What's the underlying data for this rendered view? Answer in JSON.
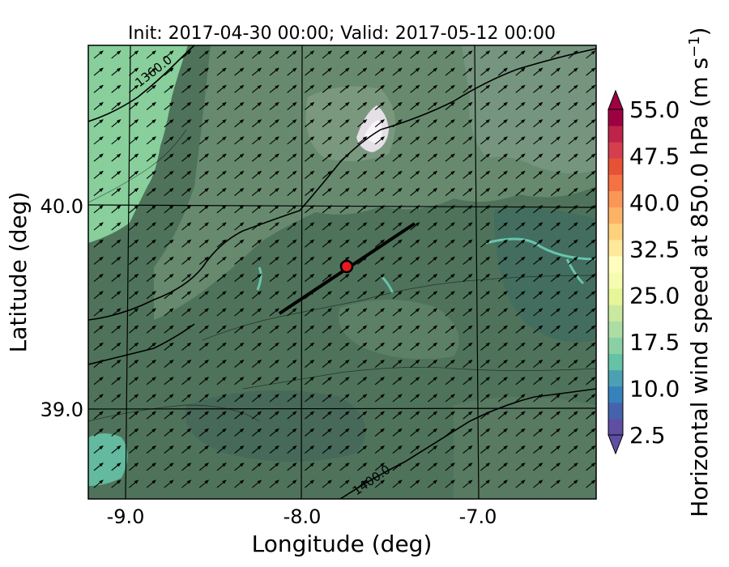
{
  "title": "Init: 2017-04-30 00:00; Valid: 2017-05-12 00:00",
  "map": {
    "xlabel": "Longitude (deg)",
    "ylabel": "Latitude (deg)",
    "x_ticks": [
      "-9.0",
      "-8.0",
      "-7.0"
    ],
    "y_ticks": [
      "40.0",
      "39.0"
    ],
    "contour_labels": [
      "1360.0",
      "1400.0"
    ],
    "wind_arrow_direction": "south-west wind (arrows pointing north-east)",
    "marker": {
      "color": "#e8191e",
      "outline": "#000000"
    },
    "colors": {
      "background_field": "#4e735a",
      "high_wind": "#88cf9b",
      "contour": "#000000"
    }
  },
  "colorbar": {
    "label": "Horizontal wind speed at 850.0 hPa (m s",
    "label_sup": "−1",
    "label_end": ")",
    "ticks": [
      "55.0",
      "47.5",
      "40.0",
      "32.5",
      "25.0",
      "17.5",
      "10.0",
      "2.5"
    ],
    "bands": [
      "#5e4fa2",
      "#4563ad",
      "#3683bb",
      "#4ca0b1",
      "#66c2a5",
      "#89d1a4",
      "#abdda4",
      "#c9e99e",
      "#e6f598",
      "#f5fbb0",
      "#fffebe",
      "#fee89a",
      "#fed27d",
      "#fdb366",
      "#fa9656",
      "#f47244",
      "#e75237",
      "#d53e4f",
      "#be2449",
      "#9e0142"
    ]
  }
}
